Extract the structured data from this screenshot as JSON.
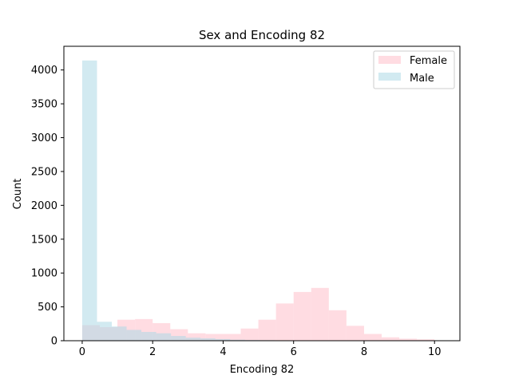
{
  "chart_data": {
    "type": "bar",
    "title": "Sex and Encoding 82",
    "xlabel": "Encoding 82",
    "ylabel": "Count",
    "xlim": [
      -0.52,
      10.72
    ],
    "ylim": [
      0,
      4350
    ],
    "xticks": [
      0,
      2,
      4,
      6,
      8,
      10
    ],
    "yticks": [
      0,
      500,
      1000,
      1500,
      2000,
      2500,
      3000,
      3500,
      4000
    ],
    "grid": false,
    "legend_position": "top-right",
    "series": [
      {
        "name": "Female",
        "color": "#ffc0cb",
        "opacity": 0.55,
        "bin_edges": [
          0,
          0.5,
          1.0,
          1.5,
          2.0,
          2.5,
          3.0,
          3.5,
          4.0,
          4.5,
          5.0,
          5.5,
          6.0,
          6.5,
          7.0,
          7.5,
          8.0,
          8.5,
          9.0,
          9.5,
          10.0
        ],
        "counts": [
          230,
          200,
          310,
          320,
          260,
          170,
          110,
          100,
          100,
          180,
          310,
          550,
          720,
          780,
          450,
          220,
          100,
          50,
          30,
          20
        ]
      },
      {
        "name": "Male",
        "color": "#add8e6",
        "opacity": 0.55,
        "bin_edges": [
          0,
          0.42,
          0.84,
          1.26,
          1.68,
          2.1,
          2.52,
          2.94,
          3.36,
          3.78,
          4.2,
          4.62,
          5.04,
          5.46,
          5.88,
          6.3,
          6.72,
          7.14,
          7.56,
          7.98,
          8.4,
          8.82,
          9.24,
          9.66,
          10.08,
          10.5
        ],
        "counts": [
          4140,
          280,
          210,
          160,
          130,
          110,
          70,
          45,
          35,
          25,
          15,
          10,
          8,
          6,
          5,
          5,
          5,
          5,
          4,
          4,
          4,
          3,
          3,
          3,
          2
        ]
      }
    ]
  }
}
